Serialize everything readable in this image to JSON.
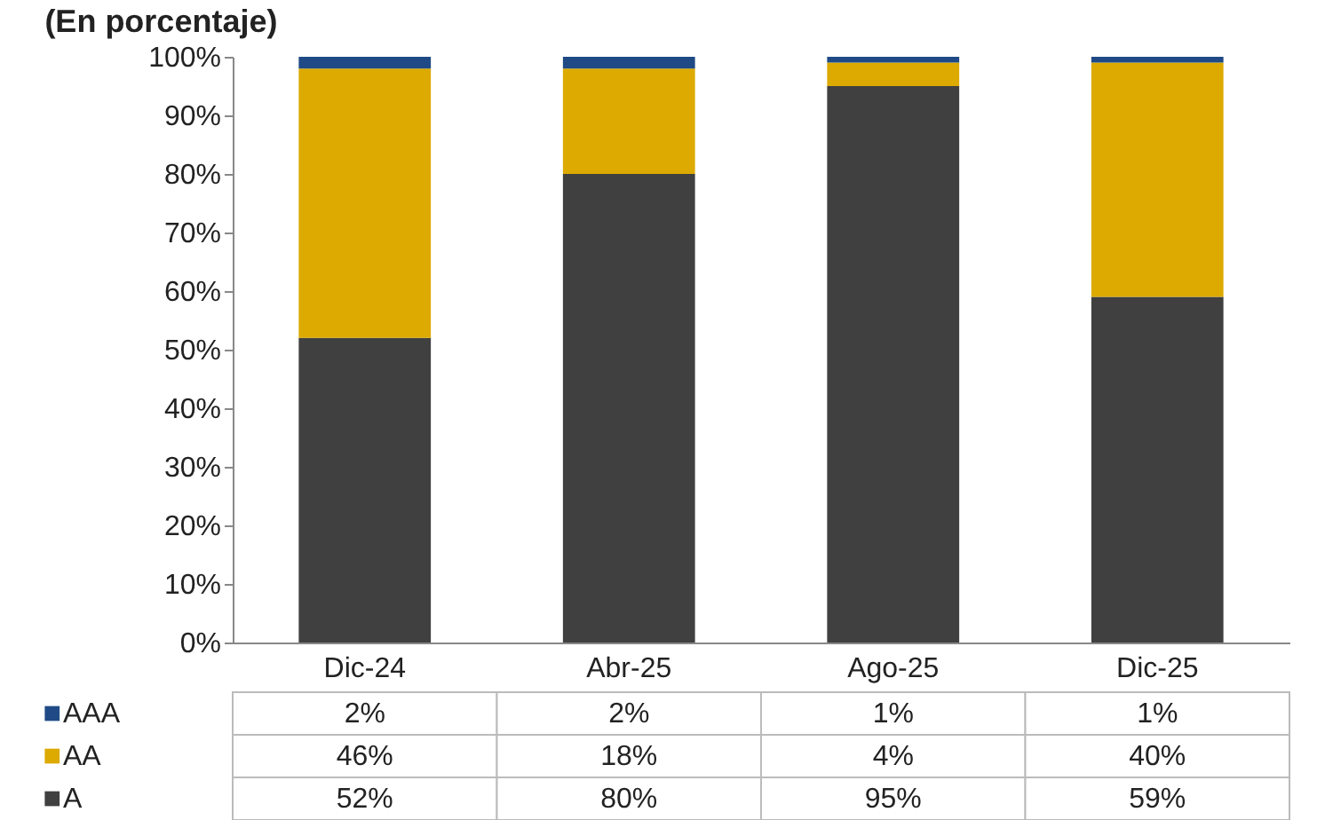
{
  "chart_data": {
    "type": "bar",
    "title": "(En porcentaje)",
    "stacked": true,
    "categories": [
      "Dic-24",
      "Abr-25",
      "Ago-25",
      "Dic-25"
    ],
    "series": [
      {
        "name": "A",
        "color": "#404040",
        "values": [
          52,
          80,
          95,
          59
        ],
        "value_labels": [
          "52%",
          "80%",
          "95%",
          "59%"
        ]
      },
      {
        "name": "AA",
        "color": "#dcaa00",
        "values": [
          46,
          18,
          4,
          40
        ],
        "value_labels": [
          "46%",
          "18%",
          "4%",
          "40%"
        ]
      },
      {
        "name": "AAA",
        "color": "#1f4a85",
        "values": [
          2,
          2,
          1,
          1
        ],
        "value_labels": [
          "2%",
          "2%",
          "1%",
          "1%"
        ]
      }
    ],
    "ylim": [
      0,
      100
    ],
    "yticks": [
      {
        "value": 0,
        "label": "0%"
      },
      {
        "value": 10,
        "label": "10%"
      },
      {
        "value": 20,
        "label": "20%"
      },
      {
        "value": 30,
        "label": "30%"
      },
      {
        "value": 40,
        "label": "40%"
      },
      {
        "value": 50,
        "label": "50%"
      },
      {
        "value": 60,
        "label": "60%"
      },
      {
        "value": 70,
        "label": "70%"
      },
      {
        "value": 80,
        "label": "80%"
      },
      {
        "value": 90,
        "label": "90%"
      },
      {
        "value": 100,
        "label": "100%"
      }
    ],
    "legend": "bottom"
  }
}
